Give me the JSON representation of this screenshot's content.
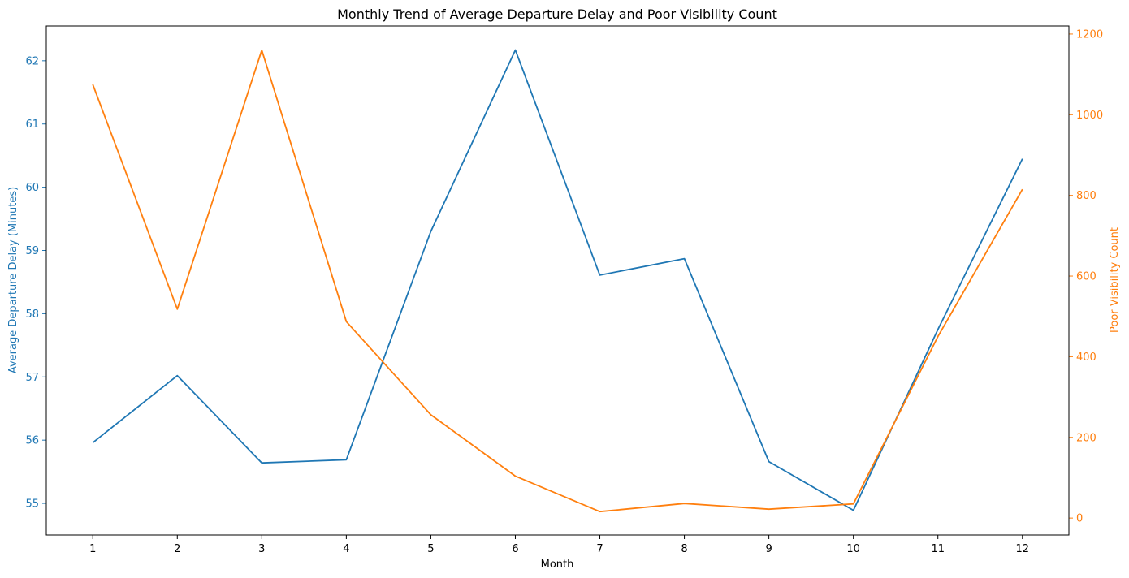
{
  "chart_data": {
    "type": "line",
    "title": "Monthly Trend of Average Departure Delay and Poor Visibility Count",
    "xlabel": "Month",
    "ylabel_left": "Average Departure Delay (Minutes)",
    "ylabel_right": "Poor Visibility Count",
    "x": [
      1,
      2,
      3,
      4,
      5,
      6,
      7,
      8,
      9,
      10,
      11,
      12
    ],
    "x_ticks": [
      "1",
      "2",
      "3",
      "4",
      "5",
      "6",
      "7",
      "8",
      "9",
      "10",
      "11",
      "12"
    ],
    "xlim": [
      0.45,
      12.55
    ],
    "left_axis": {
      "ylim": [
        54.5,
        62.55
      ],
      "ticks": [
        55,
        56,
        57,
        58,
        59,
        60,
        61,
        62
      ],
      "tick_labels": [
        "55",
        "56",
        "57",
        "58",
        "59",
        "60",
        "61",
        "62"
      ],
      "color": "#1f77b4"
    },
    "right_axis": {
      "ylim": [
        -42,
        1220
      ],
      "ticks": [
        0,
        200,
        400,
        600,
        800,
        1000,
        1200
      ],
      "tick_labels": [
        "0",
        "200",
        "400",
        "600",
        "800",
        "1000",
        "1200"
      ],
      "color": "#ff7f0e"
    },
    "series": [
      {
        "axis": "left",
        "color": "#1f77b4",
        "values": [
          55.96,
          57.02,
          55.64,
          55.69,
          59.3,
          62.17,
          58.61,
          58.87,
          55.66,
          54.89,
          57.75,
          60.45
        ]
      },
      {
        "axis": "right",
        "color": "#ff7f0e",
        "values": [
          1075,
          518,
          1160,
          487,
          256,
          104,
          16,
          36,
          22,
          35,
          450,
          815
        ]
      }
    ],
    "grid": false,
    "legend": "none"
  }
}
